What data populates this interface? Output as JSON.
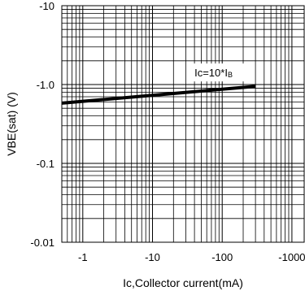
{
  "chart_data": {
    "type": "line",
    "title": "",
    "xlabel": "Ic,Collector current(mA)",
    "ylabel": "VBE(sat) (V)",
    "xscale": "log",
    "yscale": "log",
    "xlim": [
      -0.5,
      -1500
    ],
    "ylim": [
      -0.01,
      -10
    ],
    "grid": true,
    "x_ticks": [
      {
        "value": -1,
        "label": "-1"
      },
      {
        "value": -10,
        "label": "-10"
      },
      {
        "value": -100,
        "label": "-100"
      },
      {
        "value": -1000,
        "label": "-1000"
      }
    ],
    "y_ticks": [
      {
        "value": -10,
        "label": "-10"
      },
      {
        "value": -1,
        "label": "-1.0"
      },
      {
        "value": -0.1,
        "label": "-0.1"
      },
      {
        "value": -0.01,
        "label": "-0.01"
      }
    ],
    "series": [
      {
        "x": [
          -0.5,
          -300
        ],
        "y": [
          -0.58,
          -0.95
        ],
        "color": "#000000"
      }
    ],
    "annotations": [
      {
        "text_main": "Ic=10*I",
        "text_sub": "B",
        "x": -300,
        "y": -0.95
      }
    ]
  }
}
